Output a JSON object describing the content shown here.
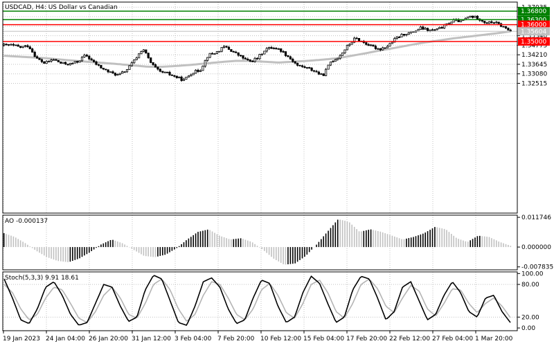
{
  "colors": {
    "background": "#ffffff",
    "candle": "#000000",
    "ma": "#c0c0c0",
    "resistance": "#008000",
    "support": "#ff0000",
    "price_tag_bg": "#c0c0c0",
    "ao_up": "#000000",
    "ao_down": "#c0c0c0",
    "stoch_main": "#000000",
    "stoch_signal": "#b4b4b4"
  },
  "chart_data": [
    {
      "type": "candlestick",
      "title": "USDCAD, H4:  US Dollar vs Canadian",
      "symbol": "USDCAD",
      "timeframe": "H4",
      "description": "US Dollar vs Canadian",
      "ylim": [
        1.2481,
        1.3734
      ],
      "y_ticks": [
        "1.37035",
        "1.36470",
        "1.35905",
        "1.35340",
        "1.34775",
        "1.34210",
        "1.33645",
        "1.33080",
        "1.32515"
      ],
      "x_tick_labels": [
        "19 Jan 2023",
        "24 Jan 04:00",
        "26 Jan 20:00",
        "31 Jan 12:00",
        "3 Feb 04:00",
        "7 Feb 20:00",
        "10 Feb 12:00",
        "15 Feb 04:00",
        "17 Feb 20:00",
        "22 Feb 12:00",
        "27 Feb 04:00",
        "1 Mar 20:00"
      ],
      "levels": [
        {
          "value": 1.368,
          "label": "1.36800",
          "kind": "resistance"
        },
        {
          "value": 1.363,
          "label": "1.36300",
          "kind": "resistance"
        },
        {
          "value": 1.36,
          "label": "1.36000",
          "kind": "support"
        },
        {
          "value": 1.35,
          "label": "1.35000",
          "kind": "support"
        }
      ],
      "current_price": {
        "value": 1.35604,
        "label": "1.35604"
      },
      "grid": true,
      "close_path": [
        1.3478,
        1.3478,
        1.3465,
        1.3475,
        1.34,
        1.337,
        1.3395,
        1.337,
        1.3365,
        1.338,
        1.342,
        1.3375,
        1.334,
        1.3315,
        1.33,
        1.333,
        1.339,
        1.346,
        1.337,
        1.332,
        1.331,
        1.329,
        1.327,
        1.3315,
        1.333,
        1.342,
        1.3435,
        1.347,
        1.344,
        1.341,
        1.338,
        1.34,
        1.3455,
        1.3465,
        1.3445,
        1.34,
        1.3355,
        1.3345,
        1.3325,
        1.3295,
        1.338,
        1.341,
        1.347,
        1.352,
        1.3495,
        1.347,
        1.3455,
        1.3475,
        1.352,
        1.3545,
        1.3555,
        1.358,
        1.3565,
        1.357,
        1.3595,
        1.3625,
        1.362,
        1.365,
        1.364,
        1.361,
        1.3615,
        1.359,
        1.356
      ],
      "ma_path": [
        1.3415,
        1.341,
        1.3405,
        1.34,
        1.3392,
        1.3385,
        1.3378,
        1.3372,
        1.3365,
        1.3357,
        1.335,
        1.335,
        1.3355,
        1.3362,
        1.337,
        1.3378,
        1.3385,
        1.3385,
        1.338,
        1.3375,
        1.338,
        1.3385,
        1.3392,
        1.34,
        1.3415,
        1.343,
        1.3447,
        1.3462,
        1.3478,
        1.3493,
        1.3505,
        1.3518,
        1.3528,
        1.3538,
        1.3548,
        1.356
      ],
      "candle_count": 215
    },
    {
      "type": "bar",
      "title": "AO -0.000137",
      "indicator": "Awesome Oscillator",
      "last_value": -0.000137,
      "ylim": [
        -0.009,
        0.0126
      ],
      "y_ticks": [
        "0.011746",
        "0.000000",
        "-0.007835"
      ],
      "bars_path": [
        0.0055,
        0.004,
        0.0015,
        -0.0015,
        -0.004,
        -0.0055,
        -0.006,
        -0.0045,
        -0.002,
        0.001,
        0.003,
        0.0015,
        -0.001,
        -0.0035,
        -0.004,
        -0.003,
        -0.0005,
        0.003,
        0.006,
        0.007,
        0.0045,
        0.003,
        0.0035,
        0.002,
        -0.001,
        -0.0045,
        -0.007,
        -0.0065,
        -0.0035,
        0.001,
        0.006,
        0.011,
        0.01,
        0.006,
        0.007,
        0.006,
        0.0045,
        0.003,
        0.004,
        0.0055,
        0.008,
        0.007,
        0.0035,
        0.002,
        0.0045,
        0.004,
        0.002,
        0.0005
      ]
    },
    {
      "type": "line",
      "title": "Stoch(5,3,3) 9.91 18.61",
      "indicator": "Stochastic Oscillator",
      "params": "5,3,3",
      "main_value": 9.91,
      "signal_value": 18.61,
      "ylim": [
        -5,
        103
      ],
      "y_ticks": [
        "100.00",
        "80.00",
        "20.00",
        "0.00"
      ],
      "levels": [
        80,
        20
      ],
      "main_path": [
        90,
        55,
        15,
        8,
        35,
        75,
        85,
        60,
        25,
        5,
        10,
        45,
        80,
        75,
        40,
        12,
        20,
        70,
        97,
        90,
        50,
        10,
        5,
        40,
        85,
        92,
        75,
        35,
        8,
        15,
        55,
        88,
        82,
        40,
        10,
        20,
        65,
        95,
        82,
        45,
        10,
        20,
        70,
        95,
        90,
        55,
        15,
        30,
        75,
        85,
        50,
        15,
        25,
        60,
        85,
        65,
        30,
        20,
        55,
        60,
        30,
        10
      ],
      "signal_path": [
        80,
        65,
        35,
        15,
        25,
        55,
        75,
        70,
        45,
        18,
        10,
        30,
        60,
        75,
        55,
        25,
        18,
        45,
        80,
        90,
        70,
        35,
        12,
        25,
        60,
        85,
        80,
        55,
        25,
        15,
        35,
        70,
        82,
        60,
        28,
        18,
        45,
        80,
        88,
        65,
        30,
        18,
        45,
        80,
        90,
        72,
        40,
        28,
        55,
        78,
        68,
        35,
        22,
        45,
        72,
        70,
        45,
        28,
        45,
        55,
        40,
        19
      ]
    }
  ]
}
